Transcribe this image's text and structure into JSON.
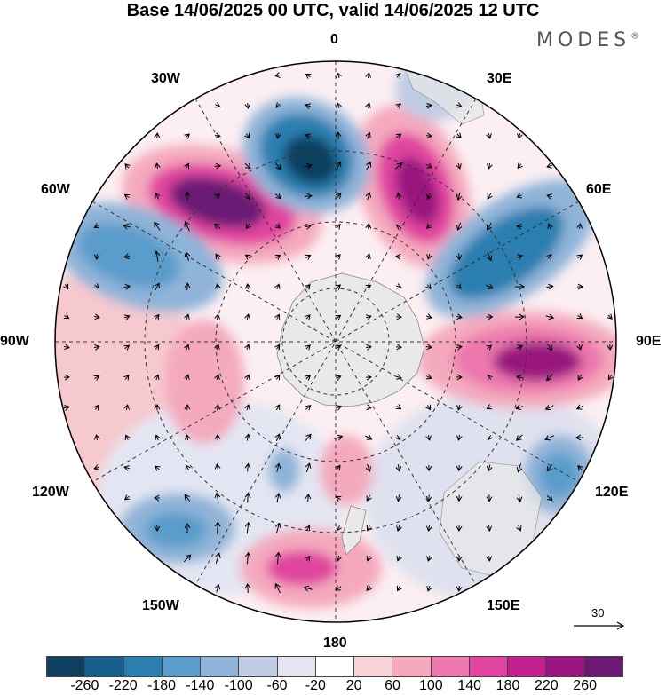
{
  "header": {
    "title": "Base 14/06/2025 00 UTC, valid 14/06/2025 12 UTC",
    "brand": "MODES",
    "brand_mark": "®"
  },
  "map": {
    "projection": "south-polar-stereographic",
    "longitude_labels": [
      "0",
      "30E",
      "60E",
      "90E",
      "120E",
      "150E",
      "180",
      "150W",
      "120W",
      "90W",
      "60W",
      "30W"
    ],
    "reference_vector": {
      "value": "30"
    }
  },
  "colorbar": {
    "colors": [
      "#0e3f5e",
      "#17608d",
      "#2b7fb0",
      "#5a9ccb",
      "#8fb4d8",
      "#bfcce4",
      "#e4e5f1",
      "#ffffff",
      "#f8d4d8",
      "#f4a9be",
      "#ec78ad",
      "#e0449f",
      "#c4208d",
      "#9a157f",
      "#6b1a74"
    ],
    "ticks": [
      "-260",
      "-220",
      "-180",
      "-140",
      "-100",
      "-60",
      "-20",
      "20",
      "60",
      "100",
      "140",
      "180",
      "220",
      "260"
    ]
  },
  "colors": {
    "land": "#e9e9e9",
    "grid": "#333333"
  }
}
